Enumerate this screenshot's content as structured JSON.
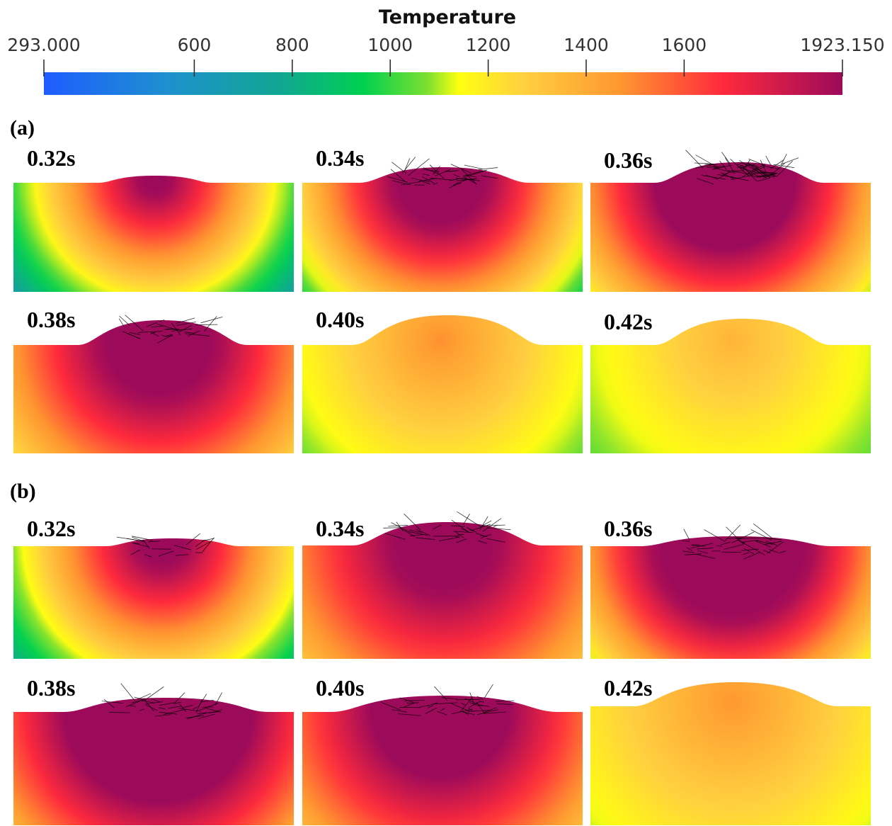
{
  "colorbar": {
    "title": "Temperature",
    "min": 293.0,
    "max": 1923.15,
    "ticks": [
      {
        "value": 293.0,
        "label": "293.000"
      },
      {
        "value": 600,
        "label": "600"
      },
      {
        "value": 800,
        "label": "800"
      },
      {
        "value": 1000,
        "label": "1000"
      },
      {
        "value": 1200,
        "label": "1200"
      },
      {
        "value": 1400,
        "label": "1400"
      },
      {
        "value": 1600,
        "label": "1600"
      },
      {
        "value": 1923.15,
        "label": "1923.150"
      }
    ],
    "colors": [
      "#1f5cff",
      "#1e8fd0",
      "#10a890",
      "#00d050",
      "#7be030",
      "#ffff10",
      "#ffd040",
      "#ff9830",
      "#ff2a3c",
      "#9c0a5a"
    ]
  },
  "sections": [
    {
      "label": "(a)",
      "panels": [
        {
          "time": "0.32s"
        },
        {
          "time": "0.34s"
        },
        {
          "time": "0.36s"
        },
        {
          "time": "0.38s"
        },
        {
          "time": "0.40s"
        },
        {
          "time": "0.42s"
        }
      ]
    },
    {
      "label": "(b)",
      "panels": [
        {
          "time": "0.32s"
        },
        {
          "time": "0.34s"
        },
        {
          "time": "0.36s"
        },
        {
          "time": "0.38s"
        },
        {
          "time": "0.40s"
        },
        {
          "time": "0.42s"
        }
      ]
    }
  ]
}
